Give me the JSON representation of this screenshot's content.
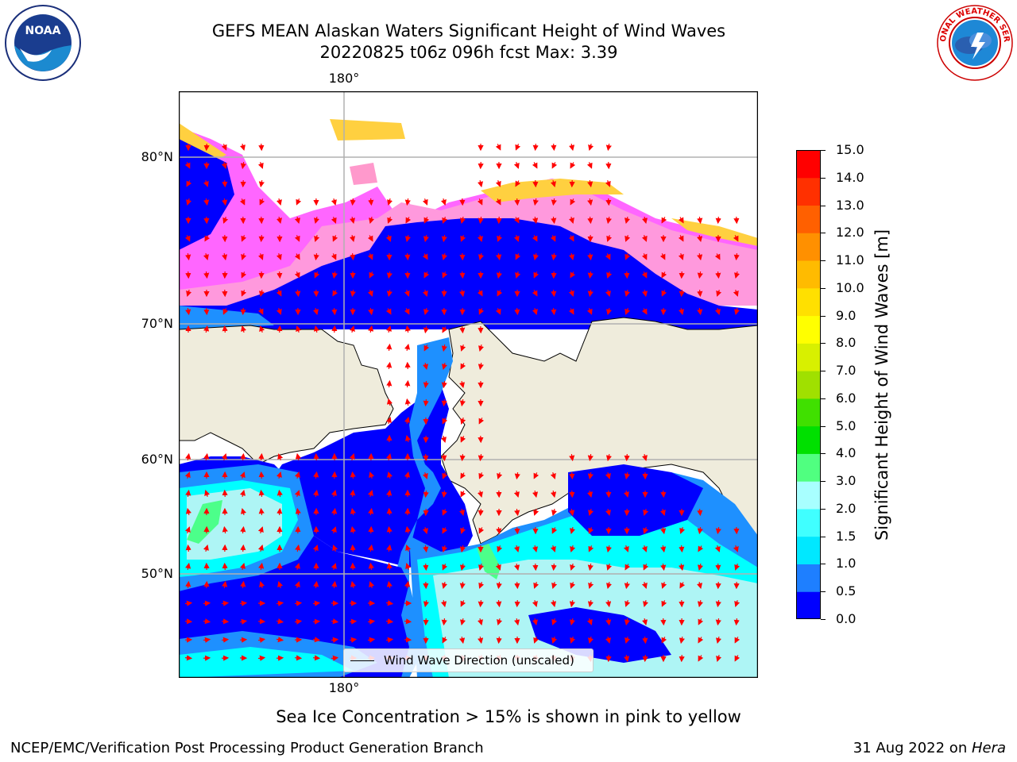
{
  "header": {
    "title_line1": "GEFS MEAN Alaskan Waters Significant Height of Wind Waves",
    "title_line2": "20220825 t06z 096h fcst   Max: 3.39"
  },
  "logos": {
    "noaa_text": "NOAA",
    "noaa_ring": "NATIONAL OCEANIC AND ATMOSPHERIC ADMINISTRATION · U.S. DEPARTMENT OF COMMERCE",
    "nws_ring": "NATIONAL WEATHER SERVICE"
  },
  "map": {
    "lat_labels": [
      "80°N",
      "70°N",
      "60°N",
      "50°N"
    ],
    "lon_label_top": "180°",
    "lon_label_bottom": "180°",
    "legend_label": "Wind Wave Direction (unscaled)",
    "arrow_color": "#ff0000",
    "land_color": "#efecdc",
    "ocean_colors": {
      "low": "#0000ff",
      "mid": "#1e90ff",
      "high": "#00ffff",
      "pale": "#aef5f5",
      "green": "#4cff8a"
    },
    "ice_colors": [
      "#ff66ff",
      "#ff99cc",
      "#ffd040"
    ]
  },
  "colorbar": {
    "label": "Significant Height of Wind Waves [m]",
    "ticks": [
      "0.0",
      "0.5",
      "1.0",
      "1.5",
      "2.0",
      "3.0",
      "4.0",
      "5.0",
      "6.0",
      "7.0",
      "8.0",
      "9.0",
      "10.0",
      "11.0",
      "12.0",
      "13.0",
      "14.0",
      "15.0"
    ],
    "colors": [
      "#0000ff",
      "#1e7fff",
      "#00e8ff",
      "#40ffff",
      "#a8ffff",
      "#50ff80",
      "#00e000",
      "#40e000",
      "#a0e000",
      "#d8f000",
      "#ffff00",
      "#ffe000",
      "#ffbb00",
      "#ff9000",
      "#ff6000",
      "#ff3000",
      "#ff0000"
    ]
  },
  "captions": {
    "sea_ice": "Sea Ice Concentration > 15% is shown in pink to yellow",
    "footer_left": "NCEP/EMC/Verification Post Processing Product Generation Branch",
    "footer_date": "31 Aug 2022 on ",
    "footer_machine": "Hera"
  }
}
